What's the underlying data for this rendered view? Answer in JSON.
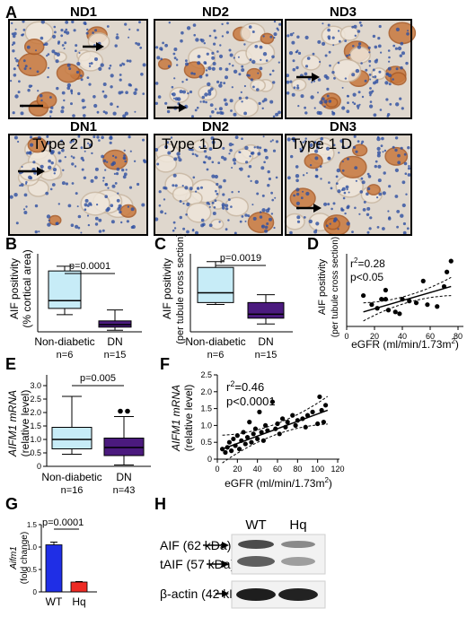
{
  "panel_letters": {
    "A": "A",
    "B": "B",
    "C": "C",
    "D": "D",
    "E": "E",
    "F": "F",
    "G": "G",
    "H": "H"
  },
  "micrographs": [
    {
      "title": "ND1",
      "subtitle": ""
    },
    {
      "title": "ND2",
      "subtitle": ""
    },
    {
      "title": "ND3",
      "subtitle": ""
    },
    {
      "title": "DN1",
      "subtitle": "Type 2 D"
    },
    {
      "title": "DN2",
      "subtitle": "Type 1 D"
    },
    {
      "title": "DN3",
      "subtitle": "Type 1 D"
    }
  ],
  "colors": {
    "nondiabetic_box": "#c7ecf7",
    "dn_box": "#4b1a7e",
    "wt_bar": "#1f2ee6",
    "hq_bar": "#ee2a24",
    "tissue_bg": "#dfd7cd",
    "nuclei": "#2d4fa1",
    "stain": "#c8793e"
  },
  "chart_data": [
    {
      "panel": "B",
      "type": "box",
      "ylabel": "AIF positivity",
      "ylabel2": "(% cortical area)",
      "categories": [
        "Non-diabetic",
        "DN"
      ],
      "n_labels": [
        "n=6",
        "n=15"
      ],
      "ylim": [
        0,
        25
      ],
      "boxes": [
        {
          "name": "Non-diabetic",
          "min": 5.5,
          "q1": 7.5,
          "median": 10,
          "q3": 19.5,
          "max": 21
        },
        {
          "name": "DN",
          "min": 0.5,
          "q1": 1.5,
          "median": 2.3,
          "q3": 3.5,
          "max": 7
        }
      ],
      "significance": "p=0.0001"
    },
    {
      "panel": "C",
      "type": "box",
      "ylabel": "AIF positivity",
      "ylabel2": "(per tubule cross section)",
      "categories": [
        "Non-diabetic",
        "DN"
      ],
      "n_labels": [
        "n=6",
        "n=15"
      ],
      "ylim": [
        0,
        0.4
      ],
      "boxes": [
        {
          "name": "Non-diabetic",
          "min": 0.14,
          "q1": 0.15,
          "median": 0.2,
          "q3": 0.33,
          "max": 0.36
        },
        {
          "name": "DN",
          "min": 0.04,
          "q1": 0.07,
          "median": 0.09,
          "q3": 0.15,
          "max": 0.19
        }
      ],
      "significance": "p=0.0019"
    },
    {
      "panel": "D",
      "type": "scatter",
      "ylabel": "AIF positivity",
      "ylabel2": "(per tubule cross section)",
      "xlabel": "eGFR (ml/min/1.73m",
      "xlabel_sup": "2",
      "xlabel_end": ")",
      "xticks": [
        "0",
        "20",
        "40",
        "60",
        "80"
      ],
      "xlim": [
        0,
        80
      ],
      "ylim": [
        0,
        0.4
      ],
      "stat_r2": "r",
      "stat_r2_sup": "2",
      "stat_r2_value": "=0.28",
      "stat_p": "p<0.05",
      "points": [
        [
          12,
          0.17
        ],
        [
          18,
          0.12
        ],
        [
          22,
          0.1
        ],
        [
          25,
          0.15
        ],
        [
          28,
          0.15
        ],
        [
          30,
          0.09
        ],
        [
          35,
          0.08
        ],
        [
          38,
          0.07
        ],
        [
          40,
          0.15
        ],
        [
          45,
          0.14
        ],
        [
          50,
          0.13
        ],
        [
          55,
          0.25
        ],
        [
          58,
          0.12
        ],
        [
          65,
          0.11
        ],
        [
          70,
          0.22
        ],
        [
          72,
          0.3
        ],
        [
          75,
          0.36
        ],
        [
          28,
          0.2
        ]
      ],
      "fit": {
        "x": [
          12,
          75
        ],
        "y": [
          0.08,
          0.22
        ]
      }
    },
    {
      "panel": "E",
      "type": "box",
      "ylabel": "AIFM1 mRNA",
      "ylabel2": "(relative level)",
      "categories": [
        "Non-diabetic",
        "DN"
      ],
      "n_labels": [
        "n=16",
        "n=43"
      ],
      "yticks": [
        "0",
        "0.5",
        "1.0",
        "1.5",
        "2.0",
        "2.5",
        "3.0"
      ],
      "ylim": [
        0,
        3
      ],
      "boxes": [
        {
          "name": "Non-diabetic",
          "min": 0.45,
          "q1": 0.65,
          "median": 1.0,
          "q3": 1.45,
          "max": 2.6
        },
        {
          "name": "DN",
          "min": 0.05,
          "q1": 0.4,
          "median": 0.7,
          "q3": 1.05,
          "max": 1.85
        }
      ],
      "outliers": [
        [
          1,
          2.05
        ],
        [
          1,
          2.05
        ]
      ],
      "significance": "p=0.005"
    },
    {
      "panel": "F",
      "type": "scatter",
      "ylabel": "AIFM1 mRNA",
      "ylabel2": "(relative level)",
      "xlabel": "eGFR (ml/min/1.73m",
      "xlabel_sup": "2",
      "xlabel_end": ")",
      "xticks": [
        "0",
        "20",
        "40",
        "60",
        "80",
        "100",
        "120"
      ],
      "yticks": [
        "0",
        "0.5",
        "1.0",
        "1.5",
        "2.0",
        "2.5"
      ],
      "xlim": [
        0,
        120
      ],
      "ylim": [
        0,
        2.5
      ],
      "stat_r2": "r",
      "stat_r2_sup": "2",
      "stat_r2_value": "=0.46",
      "stat_p": "p<0.0001",
      "points": [
        [
          5,
          0.3
        ],
        [
          8,
          0.2
        ],
        [
          10,
          0.35
        ],
        [
          12,
          0.5
        ],
        [
          14,
          0.25
        ],
        [
          16,
          0.6
        ],
        [
          18,
          0.4
        ],
        [
          20,
          0.7
        ],
        [
          22,
          0.3
        ],
        [
          24,
          0.55
        ],
        [
          26,
          0.8
        ],
        [
          28,
          0.45
        ],
        [
          30,
          0.65
        ],
        [
          32,
          1.1
        ],
        [
          34,
          0.5
        ],
        [
          36,
          0.75
        ],
        [
          38,
          0.9
        ],
        [
          40,
          0.6
        ],
        [
          42,
          1.4
        ],
        [
          44,
          0.8
        ],
        [
          46,
          0.55
        ],
        [
          48,
          1.0
        ],
        [
          50,
          0.85
        ],
        [
          55,
          1.7
        ],
        [
          58,
          0.9
        ],
        [
          60,
          1.05
        ],
        [
          62,
          0.75
        ],
        [
          65,
          1.2
        ],
        [
          68,
          0.95
        ],
        [
          70,
          1.1
        ],
        [
          75,
          1.3
        ],
        [
          78,
          1.0
        ],
        [
          80,
          1.15
        ],
        [
          85,
          1.2
        ],
        [
          88,
          0.95
        ],
        [
          90,
          1.3
        ],
        [
          95,
          1.4
        ],
        [
          100,
          1.05
        ],
        [
          102,
          1.85
        ],
        [
          104,
          1.45
        ],
        [
          106,
          1.1
        ],
        [
          108,
          1.6
        ]
      ],
      "fit": {
        "x": [
          5,
          110
        ],
        "y": [
          0.3,
          1.45
        ]
      }
    },
    {
      "panel": "G",
      "type": "bar",
      "ylabel": "Aifm1",
      "ylabel2": "(fold change)",
      "categories": [
        "WT",
        "Hq"
      ],
      "values": [
        1.05,
        0.22
      ],
      "errors": [
        0.06,
        0.01
      ],
      "yticks": [
        "0",
        "0.5",
        "1.0",
        "1.5"
      ],
      "ylim": [
        0,
        1.5
      ],
      "significance": "p=0.0001"
    }
  ],
  "western": {
    "lane_labels": [
      "WT",
      "Hq"
    ],
    "band_labels": [
      "AIF (62 kDa)",
      "tAIF (57 kDa)",
      "β-actin (42 kDa)"
    ]
  }
}
